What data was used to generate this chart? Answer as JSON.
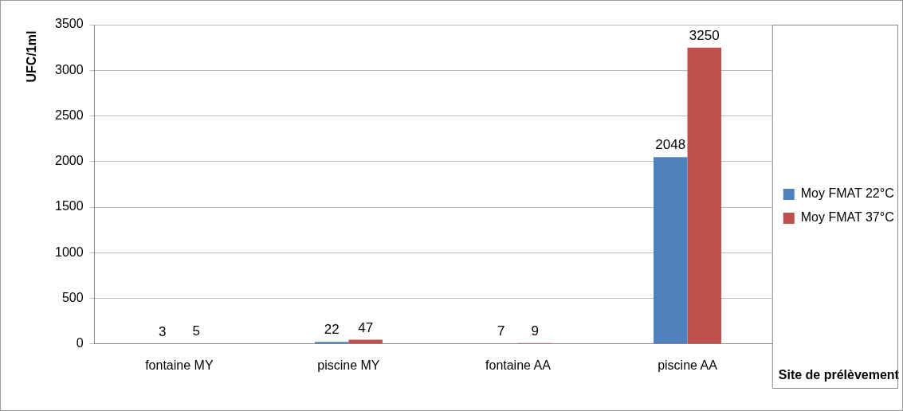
{
  "chart_data": {
    "type": "bar",
    "xlabel": "Site de prélèvement",
    "ylabel": "UFC/1ml",
    "categories": [
      "fontaine MY",
      "piscine MY",
      "fontaine AA",
      "piscine AA"
    ],
    "series": [
      {
        "name": "Moy FMAT 22°C",
        "color": "#4f81bd",
        "values": [
          3,
          22,
          7,
          2048
        ]
      },
      {
        "name": "Moy FMAT 37°C",
        "color": "#c0504d",
        "values": [
          5,
          47,
          9,
          3250
        ]
      }
    ],
    "ylim": [
      0,
      3500
    ],
    "yticks": [
      0,
      500,
      1000,
      1500,
      2000,
      2500,
      3000,
      3500
    ],
    "grid": "y",
    "legend": "right",
    "data_labels": true
  }
}
